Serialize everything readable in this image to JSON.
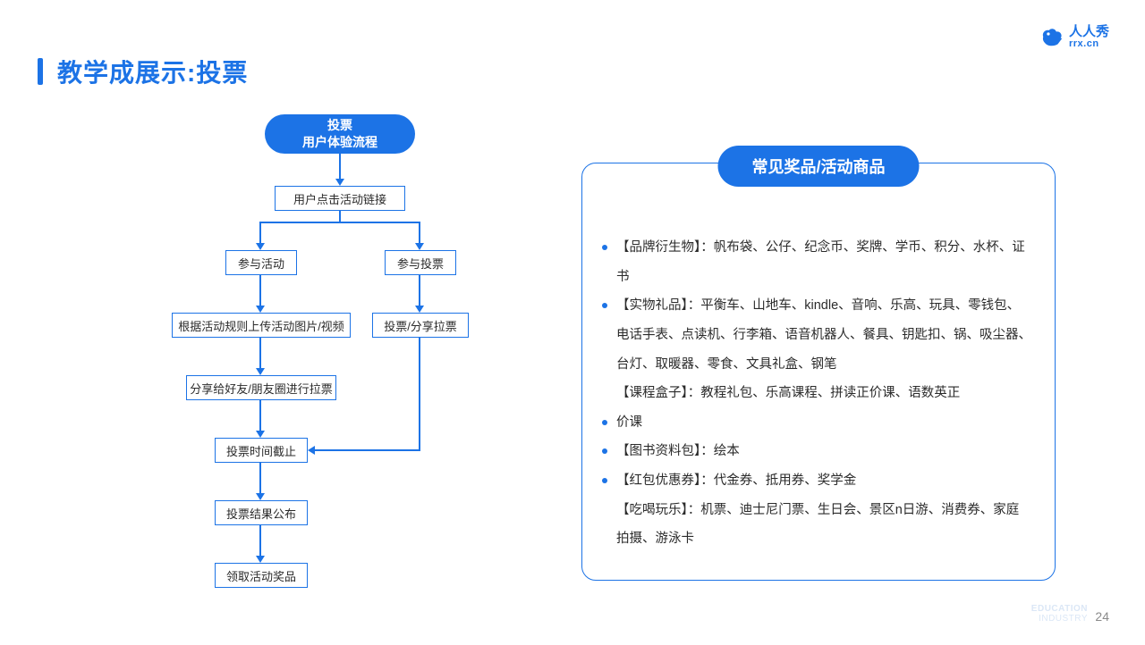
{
  "colors": {
    "primary": "#1c73e6",
    "text": "#2b2b2b",
    "muted": "#8a8a8a",
    "footer_light": "#dbe7f6",
    "background": "#ffffff"
  },
  "page": {
    "title": "教学成展示:投票",
    "number": "24",
    "footer_line1": "EDUCATION",
    "footer_line2": "INDUSTRY"
  },
  "logo": {
    "brand": "人人秀",
    "domain": "rrx.cn"
  },
  "flowchart": {
    "type": "flowchart",
    "start": {
      "line1": "投票",
      "line2": "用户体验流程"
    },
    "nodes": {
      "n1": "用户点击活动链接",
      "n2a": "参与活动",
      "n2b": "参与投票",
      "n3a": "根据活动规则上传活动图片/视频",
      "n3b": "投票/分享拉票",
      "n4": "分享给好友/朋友圈进行拉票",
      "n5": "投票时间截止",
      "n6": "投票结果公布",
      "n7": "领取活动奖品"
    }
  },
  "panel": {
    "header": "常见奖品/活动商品",
    "items": [
      {
        "bulleted": true,
        "text": "【品牌衍生物】：帆布袋、公仔、纪念币、奖牌、学币、积分、水杯、证书"
      },
      {
        "bulleted": true,
        "text": "【实物礼品】：平衡车、山地车、kindle、音响、乐高、玩具、零钱包、电话手表、点读机、行李箱、语音机器人、餐具、钥匙扣、锅、吸尘器、台灯、取暖器、零食、文具礼盒、钢笔"
      },
      {
        "bulleted": false,
        "text": "【课程盒子】：教程礼包、乐高课程、拼读正价课、语数英正"
      },
      {
        "bulleted": true,
        "text": "价课"
      },
      {
        "bulleted": true,
        "text": "【图书资料包】：绘本"
      },
      {
        "bulleted": true,
        "text": "【红包优惠券】：代金券、抵用券、奖学金"
      },
      {
        "bulleted": false,
        "text": "【吃喝玩乐】：机票、迪士尼门票、生日会、景区n日游、消费券、家庭拍摄、游泳卡"
      }
    ]
  }
}
